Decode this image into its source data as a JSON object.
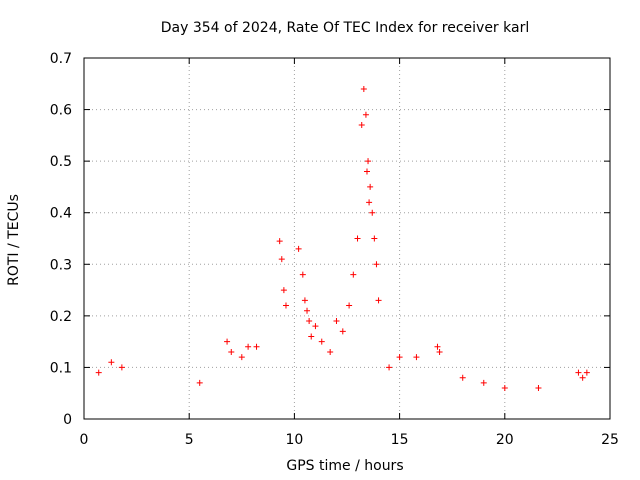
{
  "chart_data": {
    "type": "scatter",
    "title": "Day 354 of 2024, Rate Of TEC Index for receiver karl",
    "xlabel": "GPS time / hours",
    "ylabel": "ROTI / TECUs",
    "xlim": [
      0,
      25
    ],
    "ylim": [
      0,
      0.7
    ],
    "x_ticks": [
      "0",
      "5",
      "10",
      "15",
      "20",
      "25"
    ],
    "y_ticks": [
      "0",
      "0.1",
      "0.2",
      "0.3",
      "0.4",
      "0.5",
      "0.6",
      "0.7"
    ],
    "grid": true,
    "marker": "+",
    "color": "#ff0000",
    "series": [
      {
        "x": [
          0.7,
          1.3,
          1.8,
          5.5,
          6.8,
          7.0,
          7.5,
          7.8,
          8.2,
          9.3,
          9.4,
          9.5,
          9.6,
          10.2,
          10.4,
          10.5,
          10.6,
          10.7,
          10.8,
          11.0,
          11.3,
          11.7,
          12.0,
          12.3,
          12.6,
          12.8,
          13.0,
          13.2,
          13.3,
          13.4,
          13.45,
          13.5,
          13.55,
          13.6,
          13.7,
          13.8,
          13.9,
          14.0,
          14.5,
          15.0,
          15.8,
          16.8,
          16.9,
          18.0,
          19.0,
          20.0,
          21.6,
          23.5,
          23.7,
          23.9
        ],
        "y": [
          0.09,
          0.11,
          0.1,
          0.07,
          0.15,
          0.13,
          0.12,
          0.14,
          0.14,
          0.345,
          0.31,
          0.25,
          0.22,
          0.33,
          0.28,
          0.23,
          0.21,
          0.19,
          0.16,
          0.18,
          0.15,
          0.13,
          0.19,
          0.17,
          0.22,
          0.28,
          0.35,
          0.57,
          0.64,
          0.59,
          0.48,
          0.5,
          0.42,
          0.45,
          0.4,
          0.35,
          0.3,
          0.23,
          0.1,
          0.12,
          0.12,
          0.14,
          0.13,
          0.08,
          0.07,
          0.06,
          0.06,
          0.09,
          0.08,
          0.09
        ]
      }
    ]
  }
}
